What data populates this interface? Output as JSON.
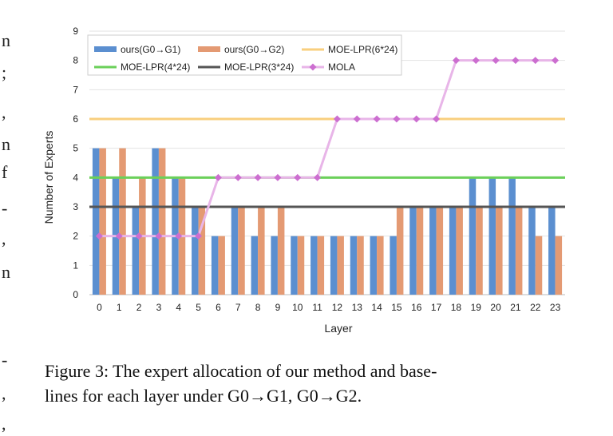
{
  "margin_fragments": [
    "n",
    ";",
    ",",
    "n",
    "f",
    "-",
    ",",
    "n",
    "-",
    ",",
    ","
  ],
  "caption": {
    "line1": "Figure 3: The expert allocation of our method and base-",
    "line2": "lines for each layer under G0→G1, G0→G2."
  },
  "chart_data": {
    "type": "bar",
    "title": "",
    "xlabel": "Layer",
    "ylabel": "Number of Experts",
    "ylim": [
      0,
      9
    ],
    "yticks": [
      "0",
      "1",
      "2",
      "3",
      "4",
      "5",
      "6",
      "7",
      "8",
      "9"
    ],
    "grid": true,
    "legend_position": "top",
    "categories": [
      "0",
      "1",
      "2",
      "3",
      "4",
      "5",
      "6",
      "7",
      "8",
      "9",
      "10",
      "11",
      "12",
      "13",
      "14",
      "15",
      "16",
      "17",
      "18",
      "19",
      "20",
      "21",
      "22",
      "23"
    ],
    "series": [
      {
        "name": "ours(G0→G1)",
        "kind": "bar",
        "color": "#5b8fd0",
        "values": [
          5,
          4,
          3,
          5,
          4,
          3,
          2,
          3,
          2,
          2,
          2,
          2,
          2,
          2,
          2,
          2,
          3,
          3,
          3,
          4,
          4,
          4,
          3,
          3
        ]
      },
      {
        "name": "ours(G0→G2)",
        "kind": "bar",
        "color": "#e49a73",
        "values": [
          5,
          5,
          4,
          5,
          4,
          3,
          2,
          3,
          3,
          3,
          2,
          2,
          2,
          2,
          2,
          3,
          3,
          3,
          3,
          3,
          3,
          3,
          2,
          2
        ]
      },
      {
        "name": "MOE-LPR(6*24)",
        "kind": "hline",
        "color": "#f9cf7e",
        "value": 6
      },
      {
        "name": "MOE-LPR(4*24)",
        "kind": "hline",
        "color": "#6bd05a",
        "value": 4
      },
      {
        "name": "MOE-LPR(3*24)",
        "kind": "hline",
        "color": "#555555",
        "value": 3
      },
      {
        "name": "MOLA",
        "kind": "line",
        "color": "#e8b5e8",
        "marker_color": "#cc6ed0",
        "values": [
          2,
          2,
          2,
          2,
          2,
          2,
          4,
          4,
          4,
          4,
          4,
          4,
          6,
          6,
          6,
          6,
          6,
          6,
          8,
          8,
          8,
          8,
          8,
          8
        ]
      }
    ]
  }
}
